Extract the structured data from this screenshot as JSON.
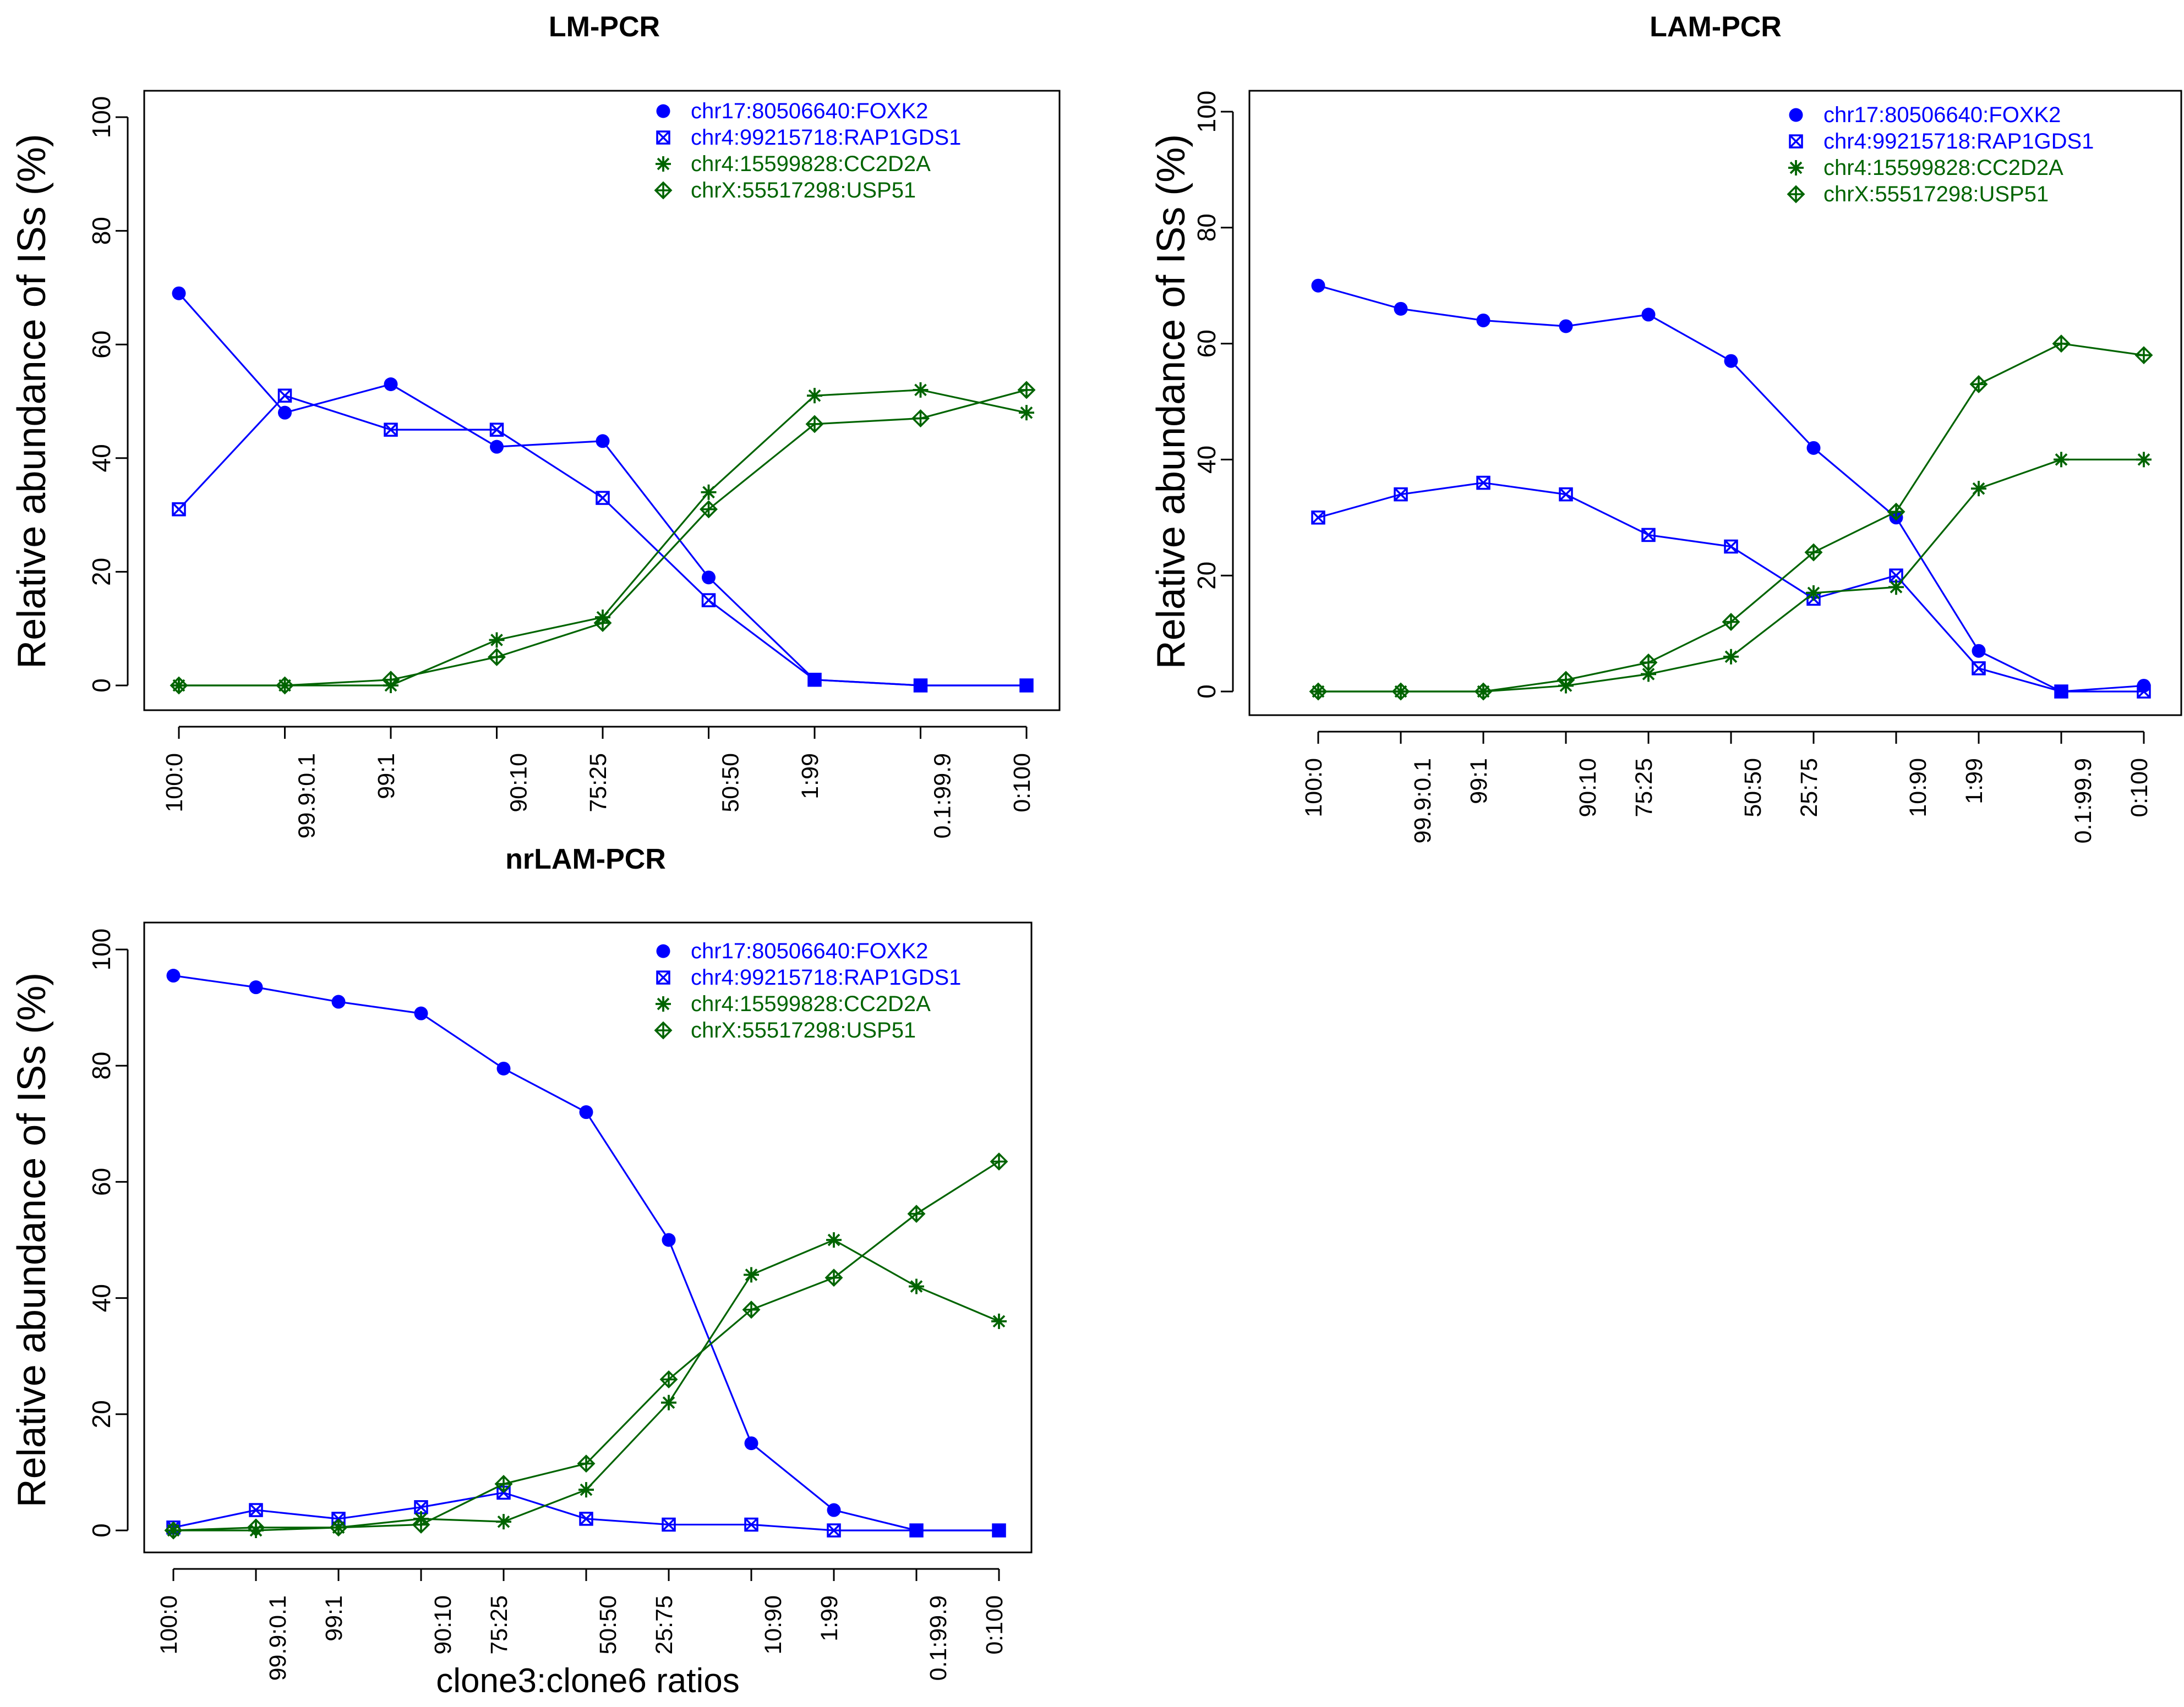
{
  "chart_data": [
    {
      "type": "line",
      "title": "LM-PCR",
      "xlabel": "",
      "ylabel": "Relative abundance of ISs (%)",
      "ylim": [
        0,
        100
      ],
      "yticks": [
        0,
        20,
        40,
        60,
        80,
        100
      ],
      "categories": [
        "100:0",
        "99.9:0.1",
        "99:1",
        "90:10",
        "75:25",
        "50:50",
        "1:99",
        "0.1:99.9",
        "0:100"
      ],
      "legend_position": "top-right",
      "series": [
        {
          "name": "chr17:80506640:FOXK2",
          "color": "#0000ff",
          "marker": "dot",
          "values": [
            69,
            48,
            53,
            42,
            43,
            19,
            1,
            0,
            0
          ]
        },
        {
          "name": "chr4:99215718:RAP1GDS1",
          "color": "#0000ff",
          "marker": "boxx",
          "values": [
            31,
            51,
            45,
            45,
            33,
            15,
            1,
            0,
            0
          ]
        },
        {
          "name": "chr4:15599828:CC2D2A",
          "color": "#006400",
          "marker": "star",
          "values": [
            0,
            0,
            0,
            8,
            12,
            34,
            51,
            52,
            48
          ]
        },
        {
          "name": "chrX:55517298:USP51",
          "color": "#006400",
          "marker": "diamplus",
          "values": [
            0,
            0,
            1,
            5,
            11,
            31,
            46,
            47,
            52
          ]
        }
      ]
    },
    {
      "type": "line",
      "title": "LAM-PCR",
      "xlabel": "",
      "ylabel": "Relative abundance of ISs (%)",
      "ylim": [
        0,
        100
      ],
      "yticks": [
        0,
        20,
        40,
        60,
        80,
        100
      ],
      "categories": [
        "100:0",
        "99.9:0.1",
        "99:1",
        "90:10",
        "75:25",
        "50:50",
        "25:75",
        "10:90",
        "1:99",
        "0.1:99.9",
        "0:100"
      ],
      "legend_position": "top-right",
      "series": [
        {
          "name": "chr17:80506640:FOXK2",
          "color": "#0000ff",
          "marker": "dot",
          "values": [
            70,
            66,
            64,
            63,
            65,
            57,
            42,
            30,
            7,
            0,
            1
          ]
        },
        {
          "name": "chr4:99215718:RAP1GDS1",
          "color": "#0000ff",
          "marker": "boxx",
          "values": [
            30,
            34,
            36,
            34,
            27,
            25,
            16,
            20,
            4,
            0,
            0
          ]
        },
        {
          "name": "chr4:15599828:CC2D2A",
          "color": "#006400",
          "marker": "star",
          "values": [
            0,
            0,
            0,
            1,
            3,
            6,
            17,
            18,
            35,
            40,
            40
          ]
        },
        {
          "name": "chrX:55517298:USP51",
          "color": "#006400",
          "marker": "diamplus",
          "values": [
            0,
            0,
            0,
            2,
            5,
            12,
            24,
            31,
            53,
            60,
            58
          ]
        }
      ]
    },
    {
      "type": "line",
      "title": "nrLAM-PCR",
      "xlabel": "clone3:clone6 ratios",
      "ylabel": "Relative abundance of ISs (%)",
      "ylim": [
        0,
        100
      ],
      "yticks": [
        0,
        20,
        40,
        60,
        80,
        100
      ],
      "categories": [
        "100:0",
        "99.9:0.1",
        "99:1",
        "90:10",
        "75:25",
        "50:50",
        "25:75",
        "10:90",
        "1:99",
        "0.1:99.9",
        "0:100"
      ],
      "legend_position": "top-right",
      "series": [
        {
          "name": "chr17:80506640:FOXK2",
          "color": "#0000ff",
          "marker": "dot",
          "values": [
            95.5,
            93.5,
            91,
            89,
            79.5,
            72,
            50,
            15,
            3.5,
            0,
            0
          ]
        },
        {
          "name": "chr4:99215718:RAP1GDS1",
          "color": "#0000ff",
          "marker": "boxx",
          "values": [
            0.5,
            3.5,
            2,
            4,
            6.5,
            2,
            1,
            1,
            0,
            0,
            0
          ]
        },
        {
          "name": "chr4:15599828:CC2D2A",
          "color": "#006400",
          "marker": "star",
          "values": [
            0,
            0,
            0.5,
            2,
            1.5,
            7,
            22,
            44,
            50,
            42,
            36
          ]
        },
        {
          "name": "chrX:55517298:USP51",
          "color": "#006400",
          "marker": "diamplus",
          "values": [
            0,
            0.5,
            0.5,
            1,
            8,
            11.5,
            26,
            38,
            43.5,
            54.5,
            63.5
          ]
        }
      ]
    }
  ]
}
